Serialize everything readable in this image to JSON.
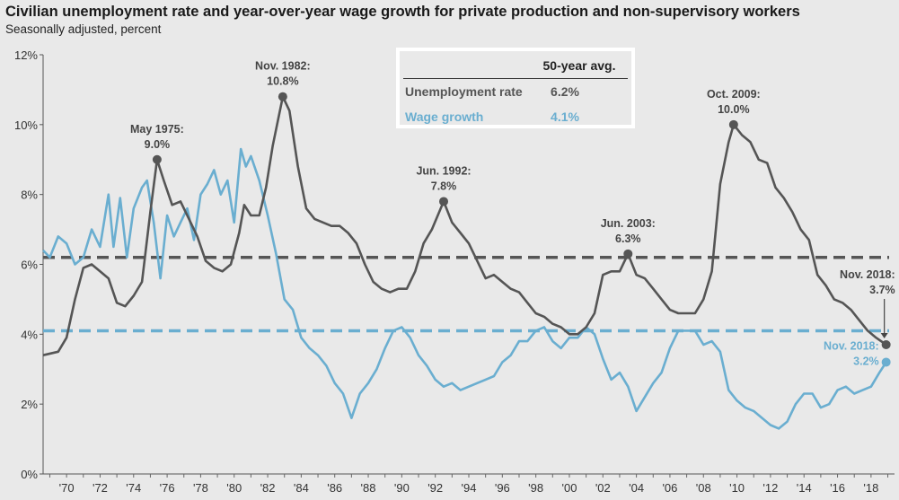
{
  "title": "Civilian unemployment rate and year-over-year wage growth for private production and non-supervisory workers",
  "subtitle": "Seasonally adjusted, percent",
  "colors": {
    "unemployment": "#555555",
    "wage": "#6aaed0",
    "background": "#e9e9e9"
  },
  "legend": {
    "header": "50-year avg.",
    "rows": [
      {
        "label": "Unemployment rate",
        "value": "6.2%",
        "color": "#555555"
      },
      {
        "label": "Wage growth",
        "value": "4.1%",
        "color": "#6aaed0"
      }
    ]
  },
  "chart_data": {
    "type": "line",
    "y_ticks": [
      "0%",
      "2%",
      "4%",
      "6%",
      "8%",
      "10%",
      "12%"
    ],
    "ylim": [
      0,
      12
    ],
    "xlim": [
      1968.6,
      2019.4
    ],
    "x_tick_labels": [
      "'70",
      "'72",
      "'74",
      "'76",
      "'78",
      "'80",
      "'82",
      "'84",
      "'86",
      "'88",
      "'90",
      "'92",
      "'94",
      "'96",
      "'98",
      "'00",
      "'02",
      "'04",
      "'06",
      "'08",
      "'10",
      "'12",
      "'14",
      "'16",
      "'18"
    ],
    "x_tick_years": [
      1970,
      1972,
      1974,
      1976,
      1978,
      1980,
      1982,
      1984,
      1986,
      1988,
      1990,
      1992,
      1994,
      1996,
      1998,
      2000,
      2002,
      2004,
      2006,
      2008,
      2010,
      2012,
      2014,
      2016,
      2018
    ],
    "grid": false,
    "averages": [
      {
        "series": "Unemployment rate",
        "value": 6.2
      },
      {
        "series": "Wage growth",
        "value": 4.1
      }
    ],
    "series": [
      {
        "name": "Unemployment rate",
        "color": "#555555",
        "x": [
          1968.6,
          1969.5,
          1970.0,
          1970.5,
          1971.0,
          1971.5,
          1972.0,
          1972.5,
          1973.0,
          1973.5,
          1974.0,
          1974.5,
          1975.0,
          1975.4,
          1975.8,
          1976.3,
          1976.8,
          1977.3,
          1977.8,
          1978.3,
          1978.8,
          1979.3,
          1979.8,
          1980.3,
          1980.6,
          1981.0,
          1981.5,
          1981.9,
          1982.3,
          1982.9,
          1983.3,
          1983.8,
          1984.3,
          1984.8,
          1985.3,
          1985.8,
          1986.3,
          1986.8,
          1987.3,
          1987.8,
          1988.3,
          1988.8,
          1989.3,
          1989.8,
          1990.3,
          1990.8,
          1991.3,
          1991.8,
          1992.5,
          1993.0,
          1993.5,
          1994.0,
          1994.5,
          1995.0,
          1995.5,
          1996.0,
          1996.5,
          1997.0,
          1997.5,
          1998.0,
          1998.5,
          1999.0,
          1999.5,
          2000.0,
          2000.5,
          2001.0,
          2001.5,
          2002.0,
          2002.5,
          2003.0,
          2003.5,
          2004.0,
          2004.5,
          2005.0,
          2005.5,
          2006.0,
          2006.5,
          2007.0,
          2007.5,
          2008.0,
          2008.5,
          2009.0,
          2009.5,
          2009.8,
          2010.3,
          2010.8,
          2011.3,
          2011.8,
          2012.3,
          2012.8,
          2013.3,
          2013.8,
          2014.3,
          2014.8,
          2015.3,
          2015.8,
          2016.3,
          2016.8,
          2017.3,
          2017.8,
          2018.3,
          2018.9
        ],
        "values": [
          3.4,
          3.5,
          3.9,
          5.0,
          5.9,
          6.0,
          5.8,
          5.6,
          4.9,
          4.8,
          5.1,
          5.5,
          7.5,
          9.0,
          8.4,
          7.7,
          7.8,
          7.3,
          6.8,
          6.1,
          5.9,
          5.8,
          6.0,
          6.9,
          7.7,
          7.4,
          7.4,
          8.2,
          9.4,
          10.8,
          10.4,
          8.8,
          7.6,
          7.3,
          7.2,
          7.1,
          7.1,
          6.9,
          6.6,
          6.0,
          5.5,
          5.3,
          5.2,
          5.3,
          5.3,
          5.8,
          6.6,
          7.0,
          7.8,
          7.2,
          6.9,
          6.6,
          6.1,
          5.6,
          5.7,
          5.5,
          5.3,
          5.2,
          4.9,
          4.6,
          4.5,
          4.3,
          4.2,
          4.0,
          4.0,
          4.2,
          4.6,
          5.7,
          5.8,
          5.8,
          6.3,
          5.7,
          5.6,
          5.3,
          5.0,
          4.7,
          4.6,
          4.6,
          4.6,
          5.0,
          5.8,
          8.3,
          9.5,
          10.0,
          9.7,
          9.5,
          9.0,
          8.9,
          8.2,
          7.9,
          7.5,
          7.0,
          6.7,
          5.7,
          5.4,
          5.0,
          4.9,
          4.7,
          4.4,
          4.1,
          3.9,
          3.7
        ]
      },
      {
        "name": "Wage growth",
        "color": "#6aaed0",
        "x": [
          1968.6,
          1969.0,
          1969.5,
          1970.0,
          1970.5,
          1971.0,
          1971.5,
          1972.0,
          1972.5,
          1972.8,
          1973.2,
          1973.6,
          1974.0,
          1974.5,
          1974.8,
          1975.2,
          1975.6,
          1976.0,
          1976.4,
          1976.8,
          1977.2,
          1977.6,
          1978.0,
          1978.4,
          1978.8,
          1979.2,
          1979.6,
          1980.0,
          1980.4,
          1980.7,
          1981.0,
          1981.5,
          1982.0,
          1982.5,
          1983.0,
          1983.5,
          1984.0,
          1984.5,
          1985.0,
          1985.5,
          1986.0,
          1986.5,
          1987.0,
          1987.5,
          1988.0,
          1988.5,
          1989.0,
          1989.5,
          1990.0,
          1990.5,
          1991.0,
          1991.5,
          1992.0,
          1992.5,
          1993.0,
          1993.5,
          1994.0,
          1994.5,
          1995.0,
          1995.5,
          1996.0,
          1996.5,
          1997.0,
          1997.5,
          1998.0,
          1998.5,
          1999.0,
          1999.5,
          2000.0,
          2000.5,
          2001.0,
          2001.5,
          2002.0,
          2002.5,
          2003.0,
          2003.5,
          2004.0,
          2004.5,
          2005.0,
          2005.5,
          2006.0,
          2006.5,
          2007.0,
          2007.5,
          2008.0,
          2008.5,
          2009.0,
          2009.5,
          2010.0,
          2010.5,
          2011.0,
          2011.5,
          2012.0,
          2012.5,
          2013.0,
          2013.5,
          2014.0,
          2014.5,
          2015.0,
          2015.5,
          2016.0,
          2016.5,
          2017.0,
          2017.5,
          2018.0,
          2018.5,
          2018.9
        ],
        "values": [
          6.4,
          6.2,
          6.8,
          6.6,
          6.0,
          6.2,
          7.0,
          6.5,
          8.0,
          6.5,
          7.9,
          6.2,
          7.6,
          8.2,
          8.4,
          7.2,
          5.6,
          7.4,
          6.8,
          7.2,
          7.6,
          6.7,
          8.0,
          8.3,
          8.7,
          8.0,
          8.4,
          7.2,
          9.3,
          8.8,
          9.1,
          8.4,
          7.4,
          6.3,
          5.0,
          4.7,
          3.9,
          3.6,
          3.4,
          3.1,
          2.6,
          2.3,
          1.6,
          2.3,
          2.6,
          3.0,
          3.6,
          4.1,
          4.2,
          3.9,
          3.4,
          3.1,
          2.7,
          2.5,
          2.6,
          2.4,
          2.5,
          2.6,
          2.7,
          2.8,
          3.2,
          3.4,
          3.8,
          3.8,
          4.1,
          4.2,
          3.8,
          3.6,
          3.9,
          3.9,
          4.2,
          4.0,
          3.3,
          2.7,
          2.9,
          2.5,
          1.8,
          2.2,
          2.6,
          2.9,
          3.6,
          4.1,
          4.1,
          4.1,
          3.7,
          3.8,
          3.5,
          2.4,
          2.1,
          1.9,
          1.8,
          1.6,
          1.4,
          1.3,
          1.5,
          2.0,
          2.3,
          2.3,
          1.9,
          2.0,
          2.4,
          2.5,
          2.3,
          2.4,
          2.5,
          2.9,
          3.2
        ]
      }
    ],
    "annotations": [
      {
        "series": 0,
        "x": 1975.4,
        "y": 9.0,
        "line1": "May 1975:",
        "line2": "9.0%"
      },
      {
        "series": 0,
        "x": 1982.9,
        "y": 10.8,
        "line1": "Nov. 1982:",
        "line2": "10.8%"
      },
      {
        "series": 0,
        "x": 1992.5,
        "y": 7.8,
        "line1": "Jun. 1992:",
        "line2": "7.8%"
      },
      {
        "series": 0,
        "x": 2003.5,
        "y": 6.3,
        "line1": "Jun. 2003:",
        "line2": "6.3%"
      },
      {
        "series": 0,
        "x": 2009.8,
        "y": 10.0,
        "line1": "Oct. 2009:",
        "line2": "10.0%"
      },
      {
        "series": 0,
        "x": 2018.9,
        "y": 3.7,
        "line1": "Nov. 2018:",
        "line2": "3.7%"
      },
      {
        "series": 1,
        "x": 2018.9,
        "y": 3.2,
        "line1": "Nov. 2018:",
        "line2": "3.2%"
      }
    ]
  }
}
